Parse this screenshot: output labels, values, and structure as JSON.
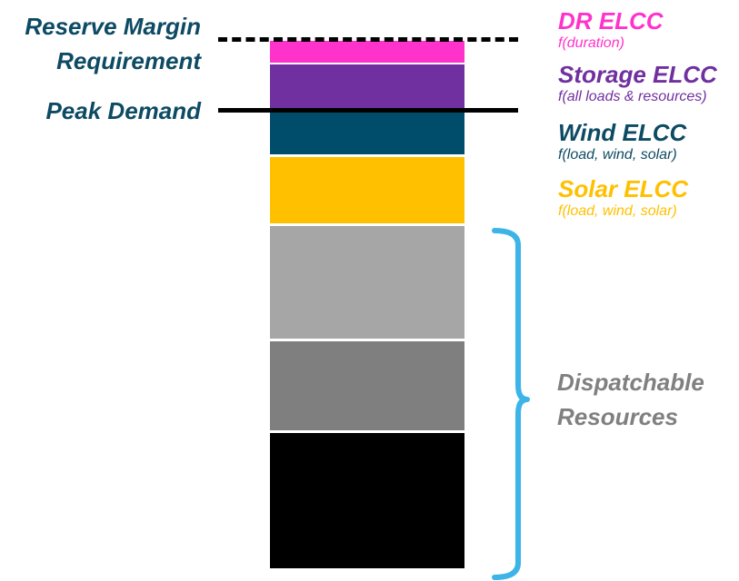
{
  "labels": {
    "reserve_margin": [
      "Reserve Margin",
      "Requirement"
    ],
    "peak_demand": "Peak Demand"
  },
  "segments": [
    {
      "name": "dr",
      "color": "#ff33cc"
    },
    {
      "name": "storage",
      "color": "#7030a0"
    },
    {
      "name": "wind",
      "color": "#004d6b"
    },
    {
      "name": "solar",
      "color": "#ffc000"
    },
    {
      "name": "dispatchable-light",
      "color": "#a6a6a6"
    },
    {
      "name": "dispatchable-mid",
      "color": "#7f7f7f"
    },
    {
      "name": "dispatchable-dark",
      "color": "#000000"
    }
  ],
  "elcc_labels": [
    {
      "title": "DR ELCC",
      "subtitle": "f(duration)",
      "color": "#ff33cc"
    },
    {
      "title": "Storage ELCC",
      "subtitle": "f(all loads & resources)",
      "color": "#7030a0"
    },
    {
      "title": "Wind ELCC",
      "subtitle": "f(load, wind, solar)",
      "color": "#0d4a63"
    },
    {
      "title": "Solar ELCC",
      "subtitle": "f(load, wind, solar)",
      "color": "#ffc000"
    }
  ],
  "dispatchable": {
    "lines": [
      "Dispatchable",
      "Resources"
    ],
    "text_color": "#808080",
    "brace_color": "#3cb4e8"
  }
}
